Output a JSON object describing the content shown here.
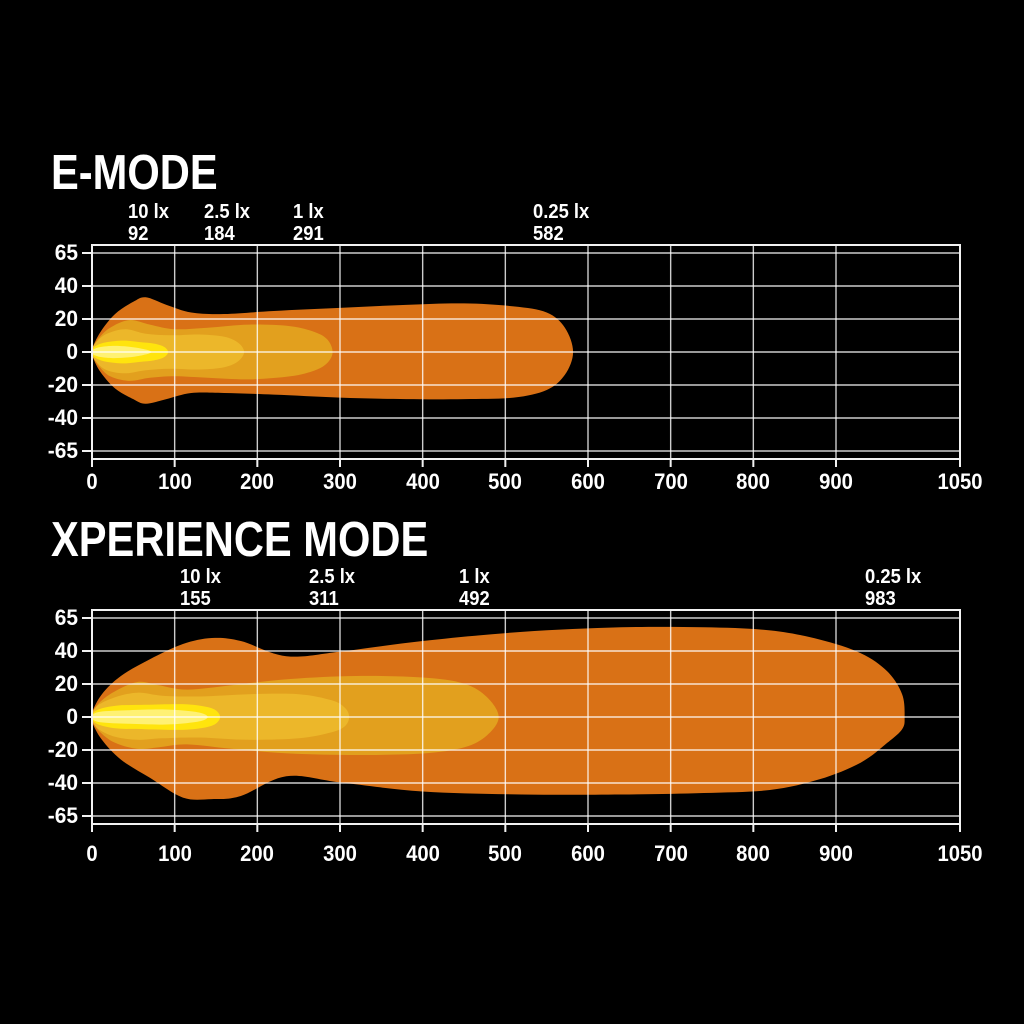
{
  "page": {
    "background": "#000000",
    "text_color": "#FFFFFF",
    "grid_color": "#DCDCDC",
    "frame_color": "#F2F2F2"
  },
  "axis": {
    "x_ticks": [
      "0",
      "100",
      "200",
      "300",
      "400",
      "500",
      "600",
      "700",
      "800",
      "900",
      "1050"
    ],
    "y_ticks": [
      "65",
      "40",
      "20",
      "0",
      "-20",
      "-40",
      "-65"
    ],
    "x_max": 1050
  },
  "chart_data": [
    {
      "type": "area",
      "title": "E-MODE",
      "x_range": [
        0,
        1050
      ],
      "y_tick_labels": [
        65,
        40,
        20,
        0,
        -20,
        -40,
        -65
      ],
      "lux_annotations": [
        {
          "label": "10 lx",
          "distance": 92
        },
        {
          "label": "2.5 lx",
          "distance": 184
        },
        {
          "label": "1 lx",
          "distance": 291
        },
        {
          "label": "0.25 lx",
          "distance": 582
        }
      ],
      "contours": [
        {
          "level": "0.25 lx",
          "end": 582,
          "color": "#D97116",
          "profile": [
            [
              0,
              2,
              2
            ],
            [
              10,
              13,
              13
            ],
            [
              28,
              25,
              24
            ],
            [
              50,
              33,
              31
            ],
            [
              65,
              36,
              34
            ],
            [
              90,
              31,
              31
            ],
            [
              120,
              26,
              27
            ],
            [
              160,
              25,
              27
            ],
            [
              220,
              27,
              28
            ],
            [
              300,
              29,
              30
            ],
            [
              380,
              31,
              31
            ],
            [
              450,
              32,
              31
            ],
            [
              510,
              30,
              30
            ],
            [
              550,
              26,
              25
            ],
            [
              572,
              16,
              15
            ],
            [
              582,
              0,
              0
            ]
          ]
        },
        {
          "level": "1 lx",
          "end": 291,
          "color": "#E2A01E",
          "profile": [
            [
              0,
              2,
              2
            ],
            [
              8,
              9,
              9
            ],
            [
              22,
              16,
              16
            ],
            [
              45,
              21,
              19
            ],
            [
              70,
              18,
              17
            ],
            [
              100,
              15,
              16
            ],
            [
              140,
              16,
              17
            ],
            [
              190,
              18,
              18
            ],
            [
              240,
              17,
              16
            ],
            [
              270,
              13,
              12
            ],
            [
              285,
              8,
              7
            ],
            [
              291,
              0,
              0
            ]
          ]
        },
        {
          "level": "2.5 lx",
          "end": 184,
          "color": "#ECB72A",
          "profile": [
            [
              0,
              2,
              2
            ],
            [
              6,
              7,
              7
            ],
            [
              18,
              12,
              12
            ],
            [
              40,
              15,
              14
            ],
            [
              65,
              12,
              12
            ],
            [
              95,
              11,
              11
            ],
            [
              130,
              11.5,
              11.5
            ],
            [
              160,
              10,
              10
            ],
            [
              177,
              6,
              6
            ],
            [
              184,
              0,
              0
            ]
          ]
        },
        {
          "level": "10 lx",
          "end": 92,
          "color": "#FFE40D",
          "profile": [
            [
              0,
              1.5,
              1.5
            ],
            [
              6,
              4.5,
              4.5
            ],
            [
              18,
              6.5,
              6.5
            ],
            [
              38,
              7.5,
              7.5
            ],
            [
              58,
              6.5,
              6.5
            ],
            [
              75,
              5.5,
              5.5
            ],
            [
              87,
              3.5,
              3.5
            ],
            [
              92,
              0,
              0
            ]
          ]
        },
        {
          "level": "core",
          "end": 72,
          "color": "#FFF173",
          "profile": [
            [
              0,
              1,
              1
            ],
            [
              8,
              3,
              3
            ],
            [
              25,
              4,
              4
            ],
            [
              45,
              3.5,
              3.5
            ],
            [
              62,
              2,
              2
            ],
            [
              72,
              0,
              0
            ]
          ]
        }
      ]
    },
    {
      "type": "area",
      "title": "XPERIENCE MODE",
      "x_range": [
        0,
        1050
      ],
      "y_tick_labels": [
        65,
        40,
        20,
        0,
        -20,
        -40,
        -65
      ],
      "lux_annotations": [
        {
          "label": "10 lx",
          "distance": 155
        },
        {
          "label": "2.5 lx",
          "distance": 311
        },
        {
          "label": "1 lx",
          "distance": 492
        },
        {
          "label": "0.25 lx",
          "distance": 983
        }
      ],
      "contours": [
        {
          "level": "0.25 lx",
          "end": 983,
          "color": "#D97116",
          "profile": [
            [
              0,
              3,
              3
            ],
            [
              12,
              15,
              15
            ],
            [
              35,
              27,
              28
            ],
            [
              70,
              38,
              40
            ],
            [
              110,
              48,
              53
            ],
            [
              145,
              52,
              54
            ],
            [
              180,
              50,
              52
            ],
            [
              235,
              40,
              39
            ],
            [
              300,
              43,
              43
            ],
            [
              400,
              50,
              49
            ],
            [
              520,
              56,
              51
            ],
            [
              640,
              59,
              51
            ],
            [
              740,
              59,
              50
            ],
            [
              820,
              57,
              48
            ],
            [
              880,
              51,
              41
            ],
            [
              930,
              42,
              30
            ],
            [
              962,
              30,
              17
            ],
            [
              980,
              15,
              8
            ],
            [
              983,
              0,
              0
            ]
          ]
        },
        {
          "level": "1 lx",
          "end": 492,
          "color": "#E2A01E",
          "profile": [
            [
              0,
              2.5,
              2.5
            ],
            [
              10,
              10,
              10
            ],
            [
              28,
              17,
              17
            ],
            [
              55,
              23,
              21
            ],
            [
              80,
              21,
              20
            ],
            [
              115,
              18,
              18
            ],
            [
              170,
              21,
              21
            ],
            [
              240,
              25,
              24
            ],
            [
              320,
              27,
              25
            ],
            [
              400,
              26,
              24
            ],
            [
              450,
              22,
              20
            ],
            [
              478,
              13,
              12
            ],
            [
              492,
              0,
              0
            ]
          ]
        },
        {
          "level": "2.5 lx",
          "end": 311,
          "color": "#ECB72A",
          "profile": [
            [
              0,
              2,
              2
            ],
            [
              8,
              8,
              8
            ],
            [
              28,
              13,
              13
            ],
            [
              55,
              16,
              15
            ],
            [
              85,
              14,
              14
            ],
            [
              130,
              13.5,
              13.5
            ],
            [
              190,
              15,
              15
            ],
            [
              250,
              15,
              14
            ],
            [
              290,
              11,
              10
            ],
            [
              306,
              6,
              6
            ],
            [
              311,
              0,
              0
            ]
          ]
        },
        {
          "level": "10 lx",
          "end": 155,
          "color": "#FFE40D",
          "profile": [
            [
              0,
              1.5,
              1.5
            ],
            [
              8,
              5,
              5
            ],
            [
              30,
              7.5,
              7.5
            ],
            [
              65,
              8,
              8
            ],
            [
              105,
              8.5,
              8.5
            ],
            [
              130,
              7.5,
              7.5
            ],
            [
              148,
              5,
              5
            ],
            [
              155,
              0,
              0
            ]
          ]
        },
        {
          "level": "core",
          "end": 140,
          "color": "#FFF173",
          "profile": [
            [
              0,
              1,
              1
            ],
            [
              10,
              3.5,
              3.5
            ],
            [
              45,
              4.5,
              4.5
            ],
            [
              85,
              5,
              5
            ],
            [
              115,
              4,
              4
            ],
            [
              133,
              2.5,
              2.5
            ],
            [
              140,
              0,
              0
            ]
          ]
        }
      ]
    }
  ]
}
